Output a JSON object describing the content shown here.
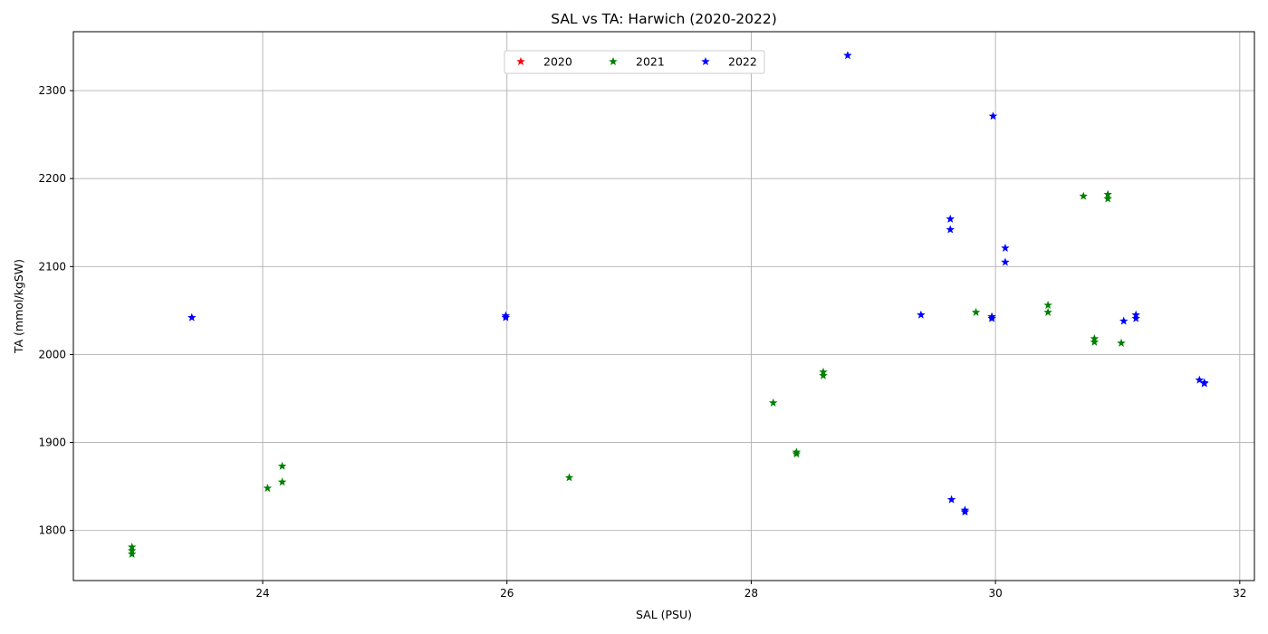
{
  "chart_data": {
    "type": "scatter",
    "title": "SAL vs TA: Harwich (2020-2022)",
    "xlabel": "SAL (PSU)",
    "ylabel": "TA (mmol/kgSW)",
    "xlim": [
      22.45,
      32.12
    ],
    "ylim": [
      1743,
      2367
    ],
    "xticks": [
      24,
      26,
      28,
      30,
      32
    ],
    "yticks": [
      1800,
      1900,
      2000,
      2100,
      2200,
      2300
    ],
    "grid": true,
    "marker": "star",
    "legend": {
      "placement": "upper-center",
      "columns": 3
    },
    "series": [
      {
        "name": "2020",
        "color": "#ff0000",
        "points": []
      },
      {
        "name": "2021",
        "color": "#008000",
        "points": [
          [
            22.93,
            1781
          ],
          [
            22.93,
            1777
          ],
          [
            22.93,
            1773
          ],
          [
            24.04,
            1848
          ],
          [
            24.16,
            1873
          ],
          [
            24.16,
            1855
          ],
          [
            26.51,
            1860
          ],
          [
            28.18,
            1945
          ],
          [
            28.37,
            1889
          ],
          [
            28.37,
            1887
          ],
          [
            28.59,
            1980
          ],
          [
            28.59,
            1976
          ],
          [
            29.84,
            2048
          ],
          [
            30.43,
            2056
          ],
          [
            30.43,
            2048
          ],
          [
            30.72,
            2180
          ],
          [
            30.81,
            2018
          ],
          [
            30.81,
            2014
          ],
          [
            30.92,
            2182
          ],
          [
            30.92,
            2177
          ],
          [
            31.03,
            2013
          ]
        ]
      },
      {
        "name": "2022",
        "color": "#0000ff",
        "points": [
          [
            23.42,
            2042
          ],
          [
            25.99,
            2044
          ],
          [
            25.99,
            2042
          ],
          [
            28.79,
            2340
          ],
          [
            29.39,
            2045
          ],
          [
            29.63,
            2154
          ],
          [
            29.63,
            2142
          ],
          [
            29.64,
            1835
          ],
          [
            29.75,
            1823
          ],
          [
            29.75,
            1821
          ],
          [
            29.97,
            2043
          ],
          [
            29.97,
            2041
          ],
          [
            29.98,
            2271
          ],
          [
            30.08,
            2121
          ],
          [
            30.08,
            2105
          ],
          [
            31.05,
            2038
          ],
          [
            31.15,
            2045
          ],
          [
            31.15,
            2041
          ],
          [
            31.67,
            1971
          ],
          [
            31.71,
            1968
          ],
          [
            31.71,
            1967
          ]
        ]
      }
    ]
  }
}
